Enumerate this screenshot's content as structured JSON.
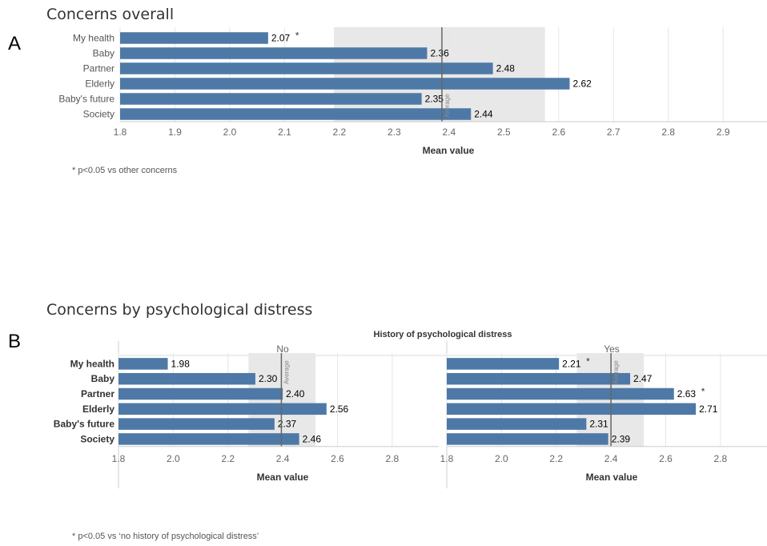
{
  "panel_a": {
    "letter": "A",
    "title": "Concerns overall",
    "footnote": "* p<0.05 vs other concerns"
  },
  "panel_b": {
    "letter": "B",
    "title": "Concerns by psychological distress",
    "facet_header": "History of psychological distress",
    "footnote": "* p<0.05 vs ‘no history of psychological distress’"
  },
  "colors": {
    "bar": "#4e79a7",
    "band": "#e8e8e8",
    "average_line": "#666666",
    "grid": "#e6e6e6"
  },
  "chart_data": [
    {
      "type": "bar",
      "orientation": "horizontal",
      "title": "Concerns overall",
      "categories": [
        "My health",
        "Baby",
        "Partner",
        "Elderly",
        "Baby's future",
        "Society"
      ],
      "values": [
        2.07,
        2.36,
        2.48,
        2.62,
        2.35,
        2.44
      ],
      "value_labels": [
        "2.07",
        "2.36",
        "2.48",
        "2.62",
        "2.35",
        "2.44"
      ],
      "significant": [
        true,
        false,
        false,
        false,
        false,
        false
      ],
      "xlabel": "Mean value",
      "xlim": [
        1.8,
        2.98
      ],
      "xticks": [
        1.8,
        1.9,
        2.0,
        2.1,
        2.2,
        2.3,
        2.4,
        2.5,
        2.6,
        2.7,
        2.8,
        2.9
      ],
      "xtick_labels": [
        "1.8",
        "1.9",
        "2.0",
        "2.1",
        "2.2",
        "2.3",
        "2.4",
        "2.5",
        "2.6",
        "2.7",
        "2.8",
        "2.9"
      ],
      "reference_line": {
        "label": "Average",
        "value": 2.387
      },
      "reference_band": [
        2.19,
        2.575
      ],
      "grid": true
    },
    {
      "type": "bar",
      "orientation": "horizontal",
      "title": "Concerns by psychological distress",
      "categories": [
        "My health",
        "Baby",
        "Partner",
        "Elderly",
        "Baby's future",
        "Society"
      ],
      "xlabel": "Mean value",
      "xlim": [
        1.8,
        2.97
      ],
      "xticks": [
        1.8,
        2.0,
        2.2,
        2.4,
        2.6,
        2.8
      ],
      "xtick_labels": [
        "1.8",
        "2.0",
        "2.2",
        "2.4",
        "2.6",
        "2.8"
      ],
      "grid": true,
      "facets": [
        {
          "name": "No",
          "values": [
            1.98,
            2.3,
            2.4,
            2.56,
            2.37,
            2.46
          ],
          "value_labels": [
            "1.98",
            "2.30",
            "2.40",
            "2.56",
            "2.37",
            "2.46"
          ],
          "significant": [
            false,
            false,
            false,
            false,
            false,
            false
          ],
          "reference_line": {
            "label": "Average",
            "value": 2.395
          },
          "reference_band": [
            2.275,
            2.52
          ]
        },
        {
          "name": "Yes",
          "values": [
            2.21,
            2.47,
            2.63,
            2.71,
            2.31,
            2.39
          ],
          "value_labels": [
            "2.21",
            "2.47",
            "2.63",
            "2.71",
            "2.31",
            "2.39"
          ],
          "significant": [
            true,
            false,
            true,
            false,
            false,
            false
          ],
          "reference_line": {
            "label": "Average",
            "value": 2.4
          },
          "reference_band": [
            2.275,
            2.52
          ]
        }
      ]
    }
  ]
}
